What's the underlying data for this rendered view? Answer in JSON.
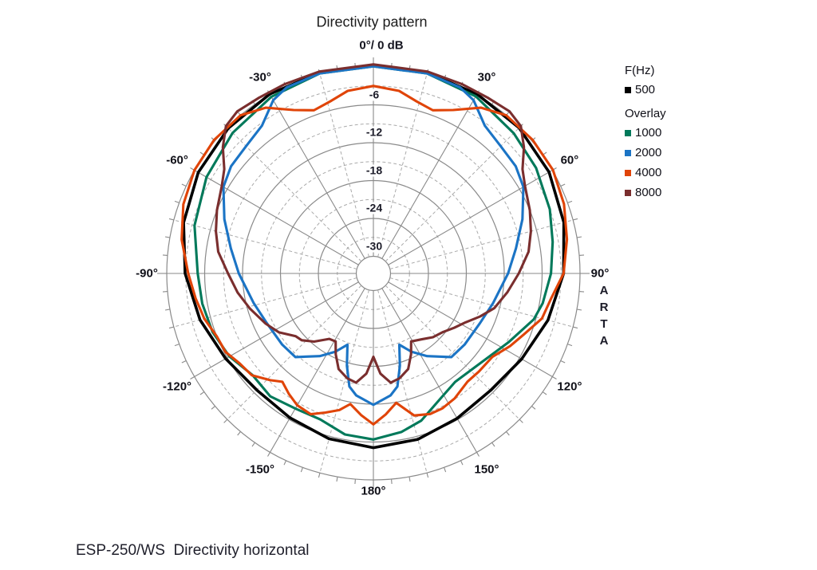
{
  "title": "Directivity pattern",
  "polar_axis": {
    "top_label": "0°/ 0 dB",
    "angle_labels": [
      {
        "angle": -30,
        "text": "-30°"
      },
      {
        "angle": 30,
        "text": "30°"
      },
      {
        "angle": -60,
        "text": "-60°"
      },
      {
        "angle": 60,
        "text": "60°"
      },
      {
        "angle": -90,
        "text": "-90°"
      },
      {
        "angle": 90,
        "text": "90°"
      },
      {
        "angle": -120,
        "text": "-120°"
      },
      {
        "angle": 120,
        "text": "120°"
      },
      {
        "angle": -150,
        "text": "-150°"
      },
      {
        "angle": 150,
        "text": "150°"
      },
      {
        "angle": 180,
        "text": "180°"
      }
    ],
    "db_tick_labels": [
      {
        "db": -6,
        "text": "-6"
      },
      {
        "db": -12,
        "text": "-12"
      },
      {
        "db": -18,
        "text": "-18"
      },
      {
        "db": -24,
        "text": "-24"
      },
      {
        "db": -30,
        "text": "-30"
      }
    ]
  },
  "legend": {
    "heading": "F(Hz)",
    "main_series": {
      "label": "500",
      "color": "#000000"
    },
    "overlay_heading": "Overlay",
    "overlay_series": [
      {
        "label": "1000",
        "color": "#00795A"
      },
      {
        "label": "2000",
        "color": "#1B74C5"
      },
      {
        "label": "4000",
        "color": "#E04408"
      },
      {
        "label": "8000",
        "color": "#7A2E2E"
      }
    ]
  },
  "watermark": "A\nR\nT\nA",
  "caption": "ESP-250/WS  Directivity horizontal",
  "grid_colors": {
    "major": "#8a8a8a",
    "minor": "#aaaaaa"
  },
  "chart_data": {
    "type": "line",
    "polar": true,
    "title": "Directivity pattern",
    "angle_unit": "deg",
    "angle_range": [
      -180,
      180
    ],
    "angle_grid_major_deg": 30,
    "angle_grid_minor_deg": 15,
    "db_range": [
      0,
      -30
    ],
    "db_grid_major": 6,
    "db_grid_minor": 3,
    "normalization_label": "0°/ 0 dB",
    "legend_position": "top-right",
    "series": [
      {
        "name": "500",
        "freq_hz": 500,
        "color": "#000000",
        "width": 3.6,
        "points": [
          [
            -180,
            -5.1
          ],
          [
            -165,
            -5.6
          ],
          [
            -150,
            -6.3
          ],
          [
            -135,
            -6.6
          ],
          [
            -120,
            -5.7
          ],
          [
            -105,
            -4.3
          ],
          [
            -90,
            -2.9
          ],
          [
            -75,
            -1.6
          ],
          [
            -60,
            -0.7
          ],
          [
            -45,
            -0.2
          ],
          [
            -30,
            0.1
          ],
          [
            -15,
            0.2
          ],
          [
            0,
            0.2
          ],
          [
            15,
            0.2
          ],
          [
            30,
            0.1
          ],
          [
            45,
            -0.1
          ],
          [
            60,
            -0.6
          ],
          [
            75,
            -1.5
          ],
          [
            90,
            -2.6
          ],
          [
            105,
            -4.1
          ],
          [
            120,
            -5.6
          ],
          [
            135,
            -6.5
          ],
          [
            150,
            -6.2
          ],
          [
            165,
            -5.5
          ],
          [
            180,
            -5.1
          ]
        ]
      },
      {
        "name": "1000",
        "freq_hz": 1000,
        "color": "#00795A",
        "width": 3.1,
        "points": [
          [
            -180,
            -6.4
          ],
          [
            -170,
            -6.8
          ],
          [
            -160,
            -8.1
          ],
          [
            -150,
            -8.0
          ],
          [
            -140,
            -7.3
          ],
          [
            -130,
            -7.7
          ],
          [
            -120,
            -6.4
          ],
          [
            -110,
            -5.6
          ],
          [
            -100,
            -5.2
          ],
          [
            -90,
            -4.9
          ],
          [
            -75,
            -3.4
          ],
          [
            -60,
            -2.2
          ],
          [
            -45,
            -1.2
          ],
          [
            -30,
            -0.4
          ],
          [
            -15,
            0.1
          ],
          [
            0,
            0.1
          ],
          [
            15,
            0.1
          ],
          [
            30,
            -0.3
          ],
          [
            45,
            -1.3
          ],
          [
            57,
            -2.0
          ],
          [
            70,
            -3.0
          ],
          [
            80,
            -3.9
          ],
          [
            90,
            -4.6
          ],
          [
            100,
            -5.5
          ],
          [
            106,
            -6.3
          ],
          [
            117,
            -8.7
          ],
          [
            130,
            -10.6
          ],
          [
            143,
            -11.2
          ],
          [
            152,
            -10.2
          ],
          [
            162,
            -8.2
          ],
          [
            170,
            -7.2
          ],
          [
            180,
            -6.4
          ]
        ]
      },
      {
        "name": "2000",
        "freq_hz": 2000,
        "color": "#1B74C5",
        "width": 3.1,
        "points": [
          [
            -180,
            -11.9
          ],
          [
            -172,
            -13.2
          ],
          [
            -168,
            -14.4
          ],
          [
            -164,
            -17.5
          ],
          [
            -160,
            -20.7
          ],
          [
            -154,
            -18.9
          ],
          [
            -147,
            -17.1
          ],
          [
            -137,
            -14.6
          ],
          [
            -128,
            -14.4
          ],
          [
            -115,
            -14.1
          ],
          [
            -104,
            -13.2
          ],
          [
            -90,
            -11.4
          ],
          [
            -80,
            -9.8
          ],
          [
            -70,
            -7.6
          ],
          [
            -60,
            -5.3
          ],
          [
            -53,
            -4.5
          ],
          [
            -45,
            -4.2
          ],
          [
            -37,
            -3.4
          ],
          [
            -30,
            -1.0
          ],
          [
            -25,
            -0.2
          ],
          [
            -15,
            0.1
          ],
          [
            0,
            0.1
          ],
          [
            15,
            0.1
          ],
          [
            25,
            -0.2
          ],
          [
            30,
            -1.0
          ],
          [
            37,
            -3.4
          ],
          [
            45,
            -4.2
          ],
          [
            53,
            -4.5
          ],
          [
            60,
            -5.3
          ],
          [
            70,
            -7.6
          ],
          [
            80,
            -9.8
          ],
          [
            90,
            -11.4
          ],
          [
            104,
            -13.2
          ],
          [
            115,
            -14.1
          ],
          [
            128,
            -14.4
          ],
          [
            137,
            -14.6
          ],
          [
            147,
            -17.1
          ],
          [
            154,
            -18.9
          ],
          [
            160,
            -20.7
          ],
          [
            164,
            -17.5
          ],
          [
            168,
            -14.4
          ],
          [
            172,
            -13.2
          ],
          [
            180,
            -11.9
          ]
        ]
      },
      {
        "name": "4000",
        "freq_hz": 4000,
        "color": "#E04408",
        "width": 3.1,
        "points": [
          [
            -180,
            -8.8
          ],
          [
            -175,
            -10.2
          ],
          [
            -170,
            -11.7
          ],
          [
            -166,
            -10.4
          ],
          [
            -161,
            -9.4
          ],
          [
            -156,
            -8.3
          ],
          [
            -150,
            -8.6
          ],
          [
            -145,
            -9.4
          ],
          [
            -140,
            -10.3
          ],
          [
            -136,
            -9.2
          ],
          [
            -130,
            -7.6
          ],
          [
            -124,
            -7.2
          ],
          [
            -118,
            -6.2
          ],
          [
            -112,
            -6.0
          ],
          [
            -105,
            -5.0
          ],
          [
            -98,
            -4.3
          ],
          [
            -90,
            -3.4
          ],
          [
            -80,
            -1.9
          ],
          [
            -70,
            -0.7
          ],
          [
            -60,
            0.0
          ],
          [
            -50,
            0.2
          ],
          [
            -40,
            0.0
          ],
          [
            -33,
            -1.4
          ],
          [
            -26,
            -3.9
          ],
          [
            -20,
            -5.2
          ],
          [
            -14,
            -4.6
          ],
          [
            -8,
            -3.5
          ],
          [
            0,
            -3.0
          ],
          [
            8,
            -3.5
          ],
          [
            14,
            -4.6
          ],
          [
            20,
            -5.2
          ],
          [
            26,
            -3.9
          ],
          [
            33,
            -1.4
          ],
          [
            40,
            0.0
          ],
          [
            50,
            0.2
          ],
          [
            60,
            0.1
          ],
          [
            70,
            -0.6
          ],
          [
            80,
            -1.6
          ],
          [
            90,
            -2.6
          ],
          [
            98,
            -4.3
          ],
          [
            105,
            -5.1
          ],
          [
            112,
            -7.0
          ],
          [
            118,
            -8.2
          ],
          [
            125,
            -9.7
          ],
          [
            133,
            -9.9
          ],
          [
            139,
            -10.0
          ],
          [
            147,
            -9.1
          ],
          [
            153,
            -8.7
          ],
          [
            158,
            -8.7
          ],
          [
            164,
            -9.3
          ],
          [
            170,
            -11.9
          ],
          [
            175,
            -10.3
          ],
          [
            180,
            -8.8
          ]
        ]
      },
      {
        "name": "8000",
        "freq_hz": 8000,
        "color": "#7A2E2E",
        "width": 3.1,
        "points": [
          [
            -180,
            -19.5
          ],
          [
            -176,
            -16.8
          ],
          [
            -171,
            -15.2
          ],
          [
            -166,
            -15.6
          ],
          [
            -160,
            -16.6
          ],
          [
            -155,
            -18.6
          ],
          [
            -151,
            -20.4
          ],
          [
            -146,
            -20.2
          ],
          [
            -139,
            -18.4
          ],
          [
            -133,
            -17.2
          ],
          [
            -129,
            -16.9
          ],
          [
            -122,
            -15.1
          ],
          [
            -115,
            -13.9
          ],
          [
            -106,
            -12.4
          ],
          [
            -98,
            -11.0
          ],
          [
            -90,
            -9.7
          ],
          [
            -82,
            -7.9
          ],
          [
            -75,
            -6.9
          ],
          [
            -68,
            -6.0
          ],
          [
            -60,
            -5.0
          ],
          [
            -55,
            -3.9
          ],
          [
            -50,
            -1.6
          ],
          [
            -45,
            0.3
          ],
          [
            -40,
            0.8
          ],
          [
            -33,
            0.5
          ],
          [
            -25,
            0.4
          ],
          [
            -15,
            0.4
          ],
          [
            0,
            0.4
          ],
          [
            15,
            0.4
          ],
          [
            25,
            0.4
          ],
          [
            33,
            0.5
          ],
          [
            40,
            0.8
          ],
          [
            45,
            0.3
          ],
          [
            50,
            -1.6
          ],
          [
            55,
            -3.9
          ],
          [
            60,
            -5.0
          ],
          [
            68,
            -6.0
          ],
          [
            75,
            -6.9
          ],
          [
            82,
            -7.9
          ],
          [
            90,
            -9.7
          ],
          [
            98,
            -11.3
          ],
          [
            106,
            -12.8
          ],
          [
            112,
            -14.5
          ],
          [
            118,
            -16.2
          ],
          [
            124,
            -17.3
          ],
          [
            130,
            -18.3
          ],
          [
            137,
            -18.9
          ],
          [
            144,
            -19.8
          ],
          [
            151,
            -20.4
          ],
          [
            155,
            -18.6
          ],
          [
            160,
            -16.6
          ],
          [
            166,
            -15.6
          ],
          [
            171,
            -15.2
          ],
          [
            176,
            -16.8
          ],
          [
            180,
            -19.5
          ]
        ]
      }
    ]
  }
}
